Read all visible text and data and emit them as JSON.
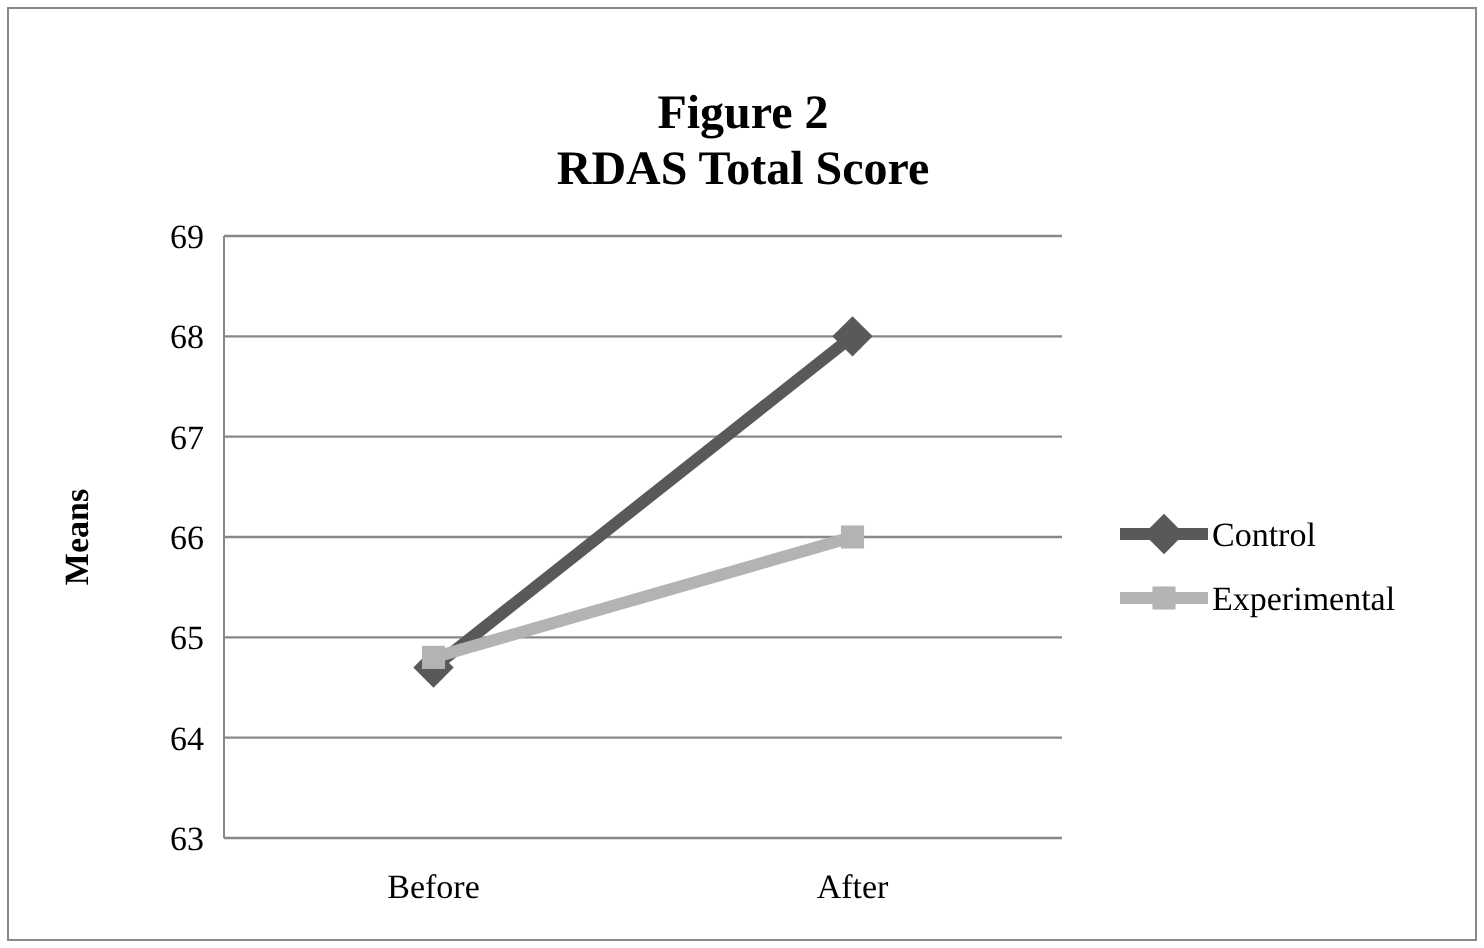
{
  "chart_data": {
    "type": "line",
    "title": "Figure 2\nRDAS Total Score",
    "ylabel": "Means",
    "categories": [
      "Before",
      "After"
    ],
    "series": [
      {
        "name": "Control",
        "color": "#595959",
        "values": [
          64.7,
          68.0
        ],
        "marker": "diamond"
      },
      {
        "name": "Experimental",
        "color": "#b3b3b3",
        "values": [
          64.8,
          66.0
        ],
        "marker": "square"
      }
    ],
    "ylim": [
      63,
      69
    ],
    "yticks": [
      63,
      64,
      65,
      66,
      67,
      68,
      69
    ],
    "grid": "y",
    "legend": "right"
  }
}
